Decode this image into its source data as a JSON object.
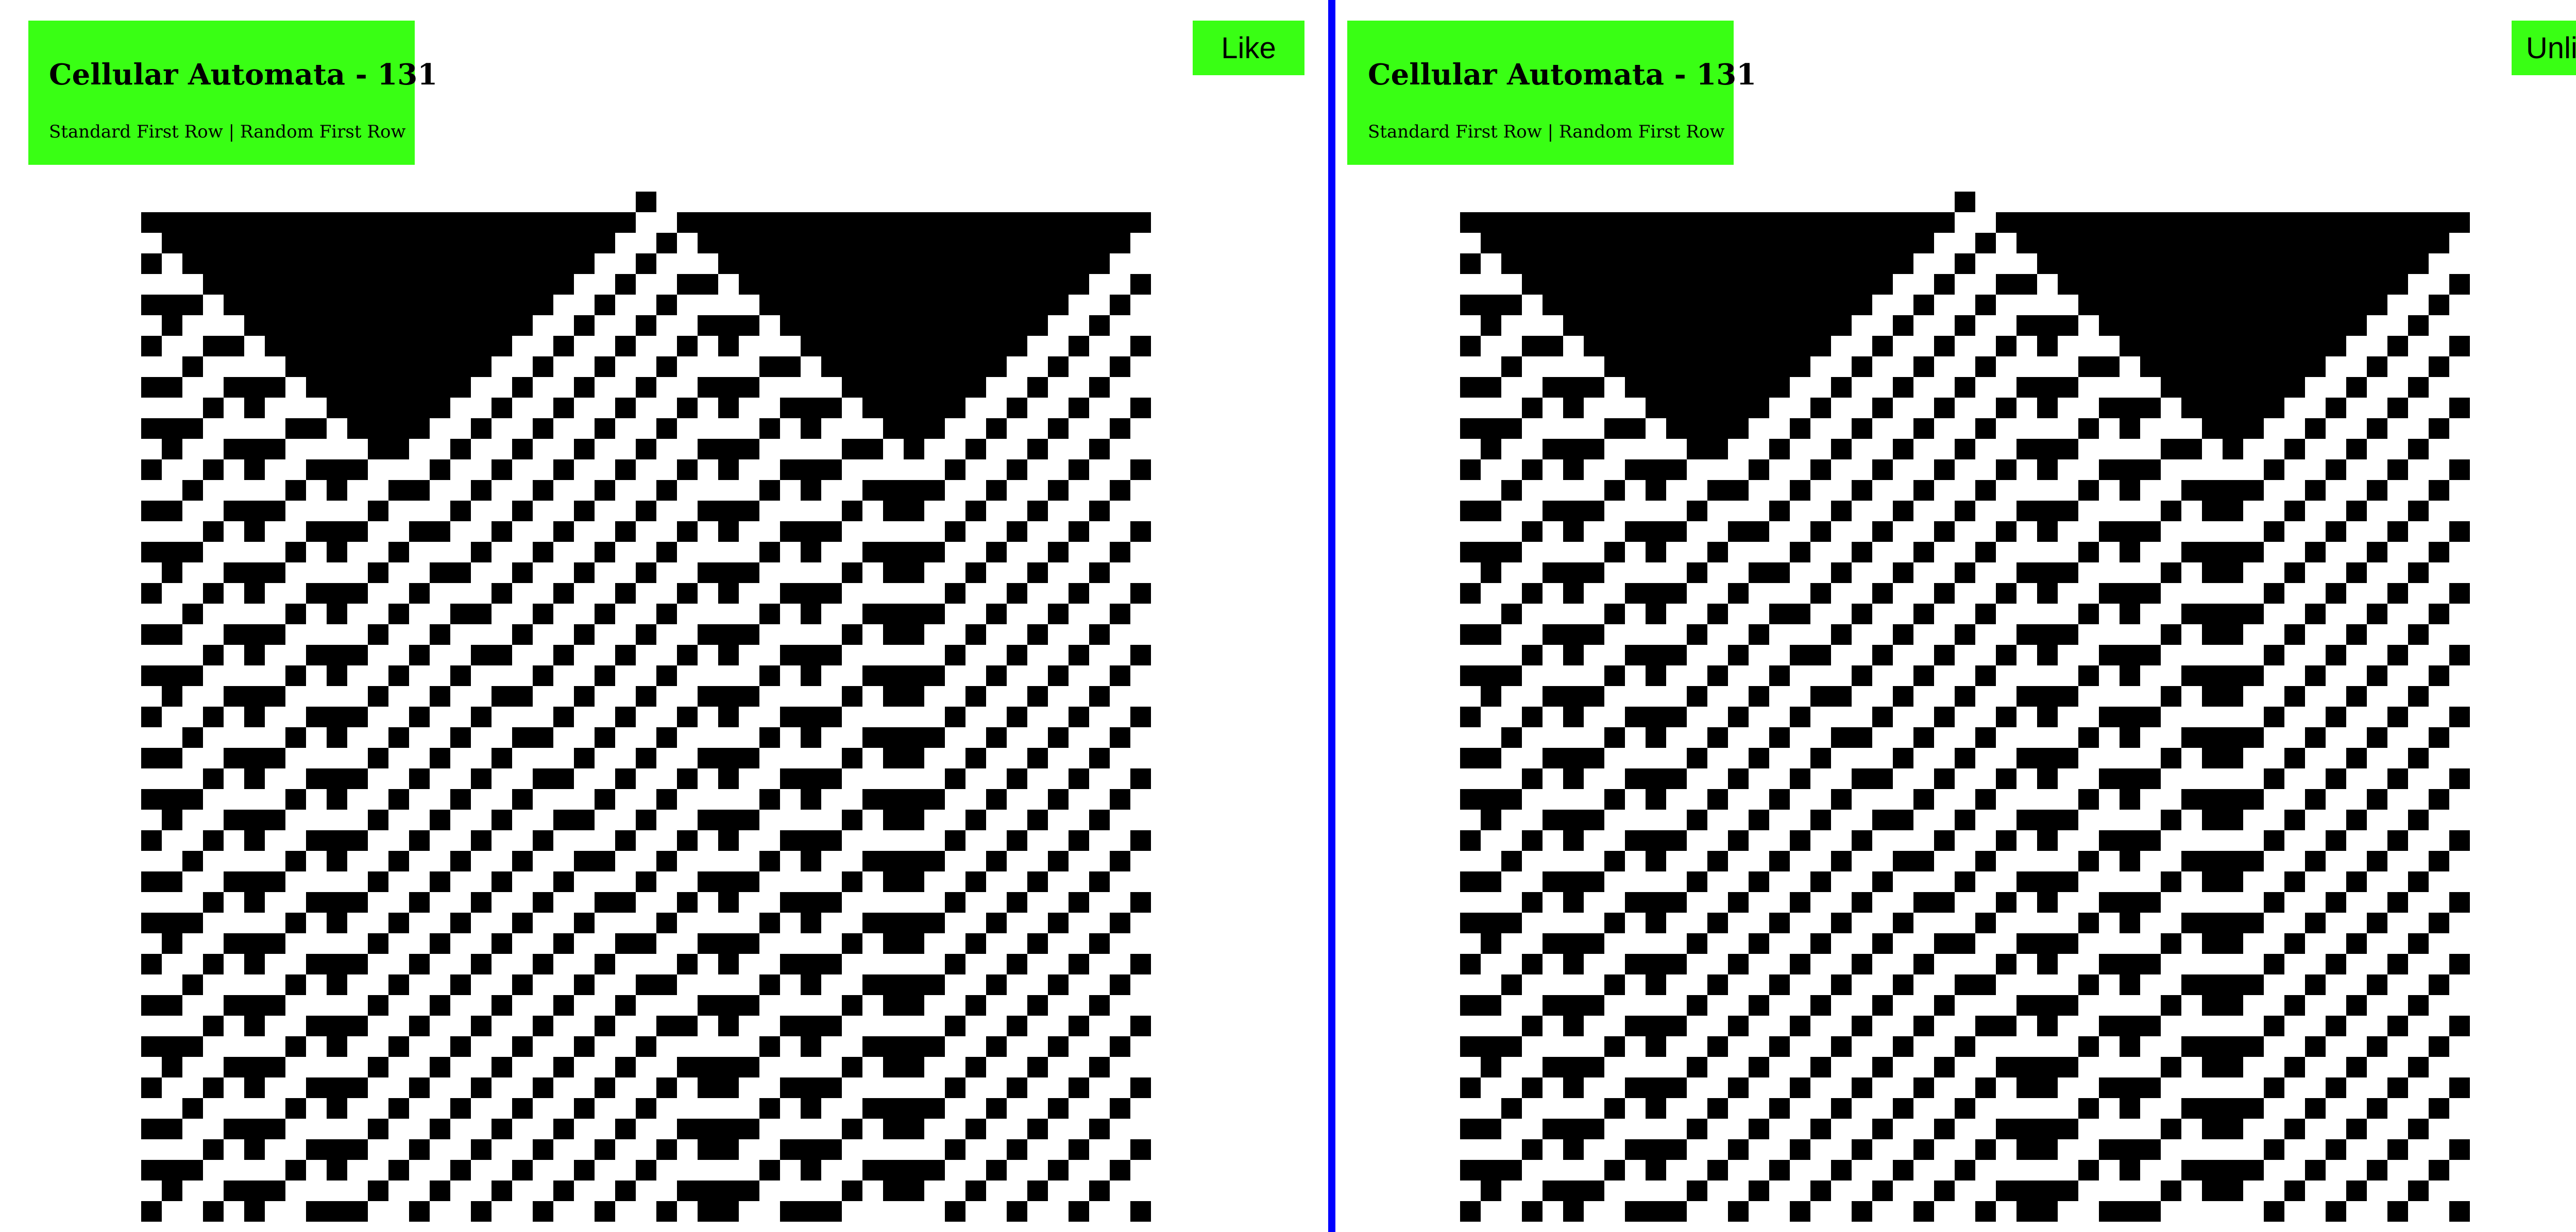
{
  "left_panel": {
    "title": "Cellular Automata - 131",
    "links": {
      "standard": "Standard First Row",
      "separator": " | ",
      "random": "Random First Row"
    },
    "action_label": "Like"
  },
  "right_panel": {
    "title": "Cellular Automata - 131",
    "links": {
      "standard": "Standard First Row",
      "separator": " | ",
      "random": "Random First Row"
    },
    "action_label": "Unlike"
  },
  "automaton": {
    "rule": 131,
    "columns": 49,
    "rows": 50,
    "first_row": "standard-single-center-cell"
  },
  "colors": {
    "accent": "#39ff14",
    "divider": "#0000ff",
    "cell_on": "#000000",
    "cell_off": "#ffffff"
  }
}
